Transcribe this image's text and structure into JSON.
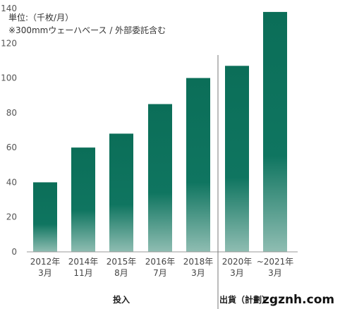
{
  "chart_data": {
    "type": "bar",
    "categories": [
      [
        "2012年",
        "3月"
      ],
      [
        "2014年",
        "11月"
      ],
      [
        "2015年",
        "8月"
      ],
      [
        "2016年",
        "7月"
      ],
      [
        "2018年",
        "3月"
      ],
      [
        "2020年",
        "3月"
      ],
      [
        "~2021年",
        "3月"
      ]
    ],
    "values": [
      40,
      60,
      68,
      85,
      100,
      107,
      138
    ],
    "yticks": [
      0,
      20,
      40,
      60,
      80,
      100,
      120,
      140
    ],
    "ylim": [
      0,
      140
    ],
    "unit_note": "単位:（千枚/月）",
    "note": "※300mmウェーハベース / 外部委託含む",
    "groups": [
      {
        "label": "投入",
        "categories": [
          0,
          1,
          2,
          3,
          4
        ]
      },
      {
        "label": "出貨（計劃）",
        "categories": [
          5,
          6
        ]
      }
    ],
    "bar_color": "#0b6e58",
    "bar_color_fade": "#86b8ac"
  },
  "watermark": "zgznh.com"
}
